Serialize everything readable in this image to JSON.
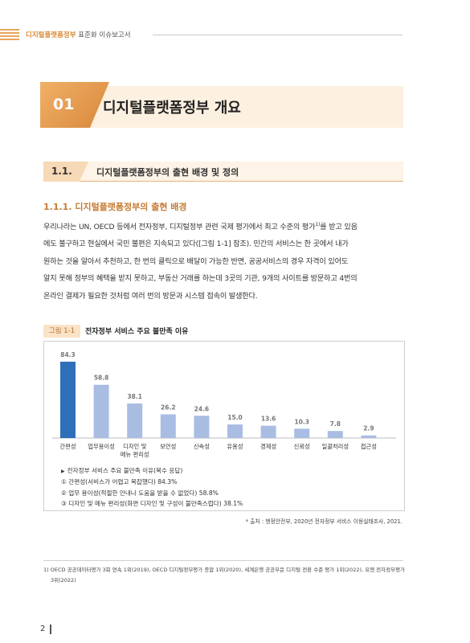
{
  "header": {
    "brand": "디지털플랫폼정부",
    "rest": "표준화 이슈보고서"
  },
  "chapter": {
    "number": "01",
    "title": "디지털플랫폼정부 개요"
  },
  "section": {
    "number": "1.1.",
    "title": "디지털플랫폼정부의 출현 배경 및 정의"
  },
  "subsection": {
    "title": "1.1.1. 디지털플랫폼정부의 출현 배경"
  },
  "body": {
    "line1": "우리나라는 UN, OECD 등에서 전자정부, 디지털정부 관련 국제 평가에서 최고 수준의 평가",
    "line1_sup": "1)",
    "line1_end": "를 받고 있음",
    "line2": "에도 불구하고 현실에서 국민 불편은 지속되고 있다([그림 1-1] 참조). 민간의 서비스는 한 곳에서 내가",
    "line3": "원하는 것을 알아서 추천하고, 한 번의 클릭으로 배달이 가능한 반면, 공공서비스의 경우 자격이 있어도",
    "line4": "알지 못해 정부의 혜택을 받지 못하고, 부동산 거래를 하는데 3곳의 기관, 9개의 사이트를 방문하고 4번의",
    "line5": "온라인 결제가 필요한 것처럼 여러 번의 방문과 시스템 접속이 발생한다."
  },
  "figure": {
    "label": "그림 1-1",
    "title": "전자정부 서비스 주요 불만족 이유"
  },
  "chart_data": {
    "type": "bar",
    "categories": [
      "간편성",
      "업무용이성",
      "디자인 및 메뉴 편리성",
      "보안성",
      "신속성",
      "유용성",
      "경제성",
      "신뢰성",
      "일괄처리성",
      "접근성"
    ],
    "values": [
      84.3,
      58.8,
      38.1,
      26.2,
      24.6,
      15.0,
      13.6,
      10.3,
      7.8,
      2.9
    ],
    "value_labels": [
      "84.3",
      "58.8",
      "38.1",
      "26.2",
      "24.6",
      "15.0",
      "13.6",
      "10.3",
      "7.8",
      "2.9"
    ],
    "title": "",
    "xlabel": "",
    "ylabel": "",
    "ylim": [
      0,
      100
    ],
    "grid": false,
    "colors": {
      "highlight": "#2f6fb8",
      "default": "#a9bde3"
    }
  },
  "notes": {
    "head": "전자정부 서비스 주요 불만족 이유(복수 응답)",
    "items": [
      "① 간편성(서비스가 어렵고 복잡했다) 84.3%",
      "② 업무 용이성(적절한 안내나 도움을 받을 수 없었다) 58.8%",
      "③ 디자인 및 메뉴 편리성(화면 디자인 및 구성이 불만족스럽다) 38.1%"
    ]
  },
  "source": "* 출처 : 행정안전부, 2020년 전자정부 서비스 이용실태조사, 2021.",
  "footnote": {
    "line1": "1) OECD 공공데이터평가 3회 연속 1위(2019), OECD 디지털정부평가 종합 1위(2020), 세계은행 공공부문 디지털 전환 수준 평가 1위(2022), 유엔 전자정부평가",
    "line2": "3위(2022)"
  },
  "page": {
    "number": "2"
  }
}
